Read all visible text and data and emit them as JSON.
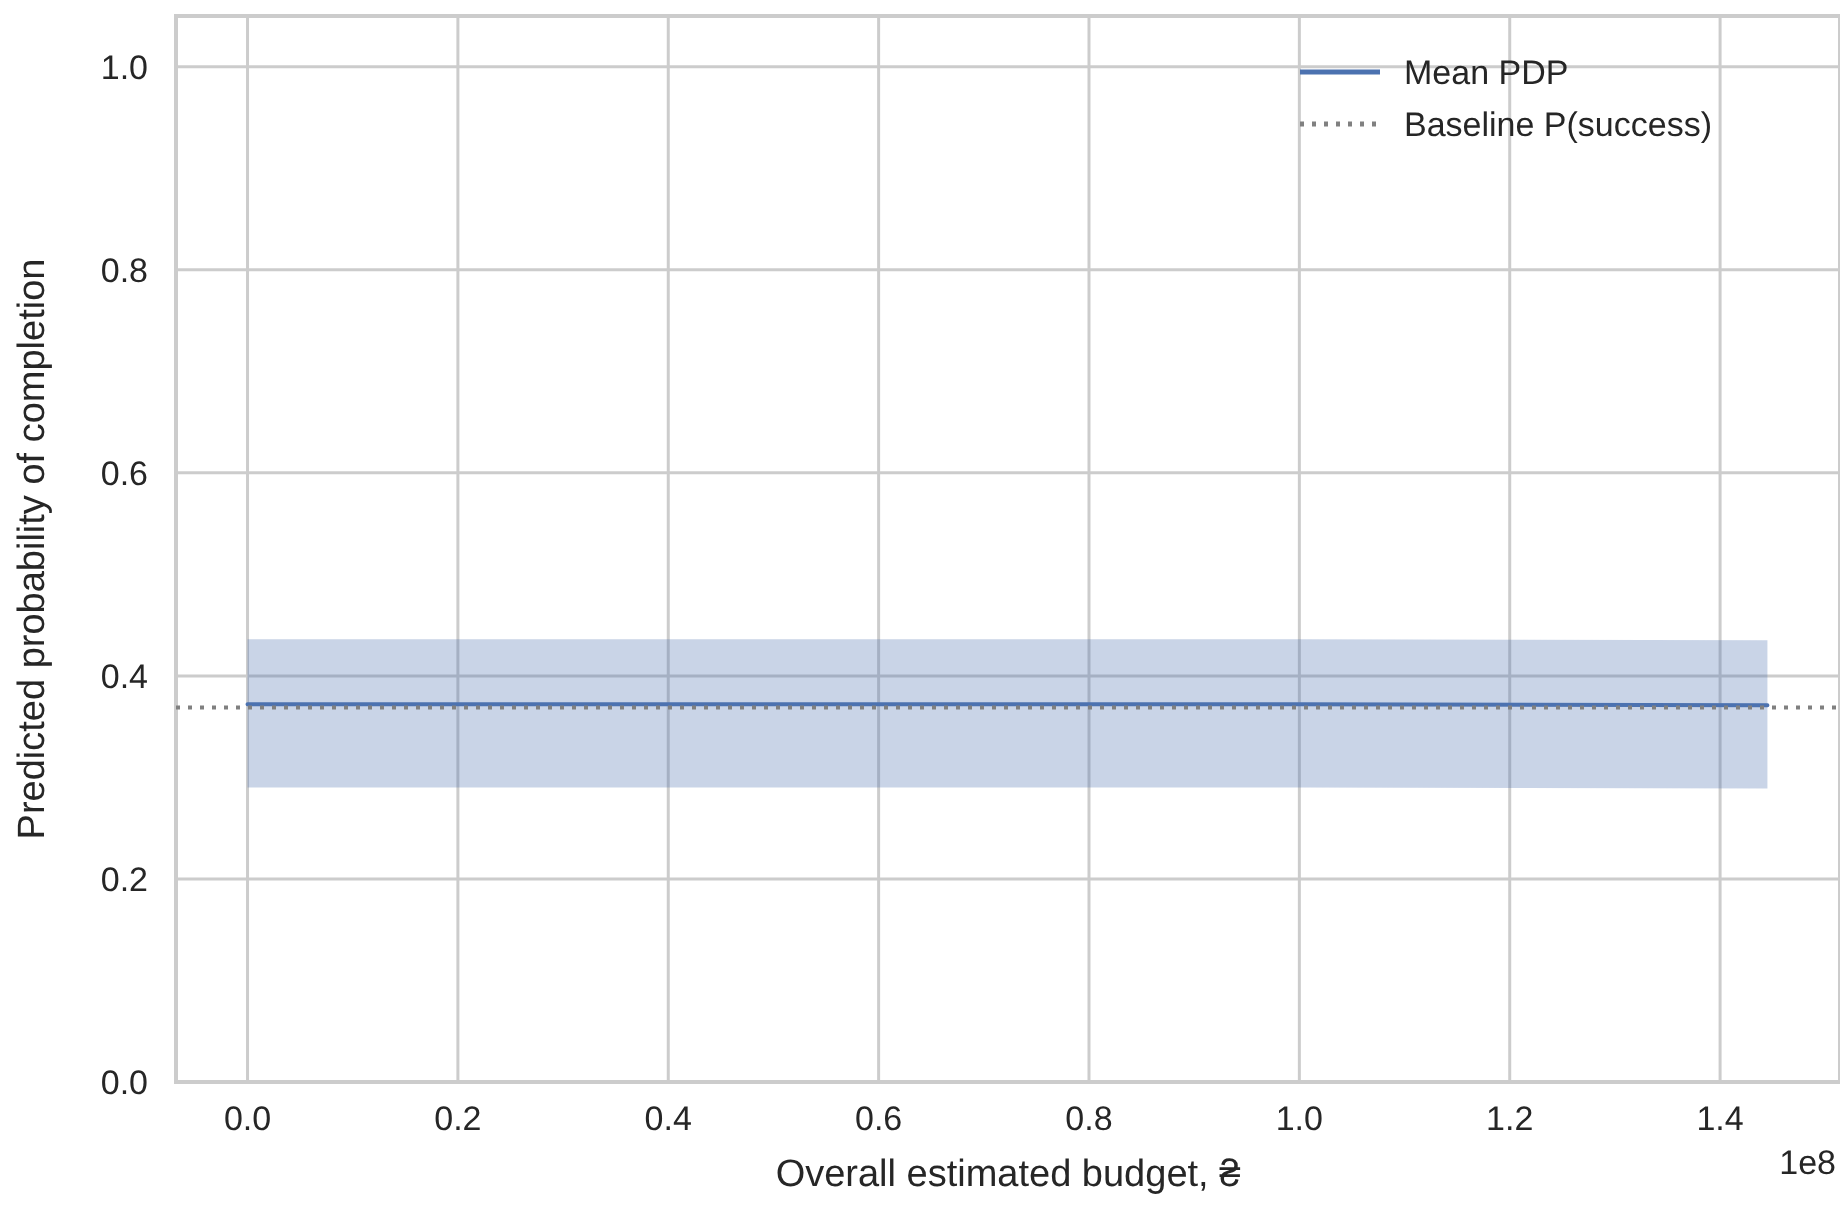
{
  "chart_data": {
    "type": "line",
    "xlabel": "Overall estimated budget, ₴",
    "ylabel": "Predicted probability of completion",
    "xlim": [
      -0.068,
      1.514
    ],
    "xticks": [
      {
        "value": 0,
        "label": "0.0"
      },
      0.2,
      0.4,
      0.6,
      0.8,
      {
        "value": 1,
        "label": "1.0"
      },
      1.2,
      1.4
    ],
    "ylim": [
      0,
      1.05
    ],
    "yticks": [
      {
        "value": 0,
        "label": "0.0"
      },
      0.2,
      0.4,
      0.6,
      0.8,
      {
        "value": 1,
        "label": "1.0"
      }
    ],
    "series": [
      {
        "name": "Mean PDP",
        "color": "#4c72b0",
        "x": [
          0,
          0.5,
          1,
          1.445
        ],
        "values": [
          0.372,
          0.372,
          0.372,
          0.371
        ],
        "lower": [
          0.29,
          0.29,
          0.29,
          0.289
        ],
        "upper": [
          0.436,
          0.436,
          0.436,
          0.435
        ]
      }
    ],
    "ref_lines": [
      {
        "axis": "y",
        "value": 0.369,
        "label": "Baseline P(success)",
        "color": "#808080",
        "line_style": "dotted"
      }
    ],
    "annotations": [
      "1e8"
    ],
    "grid": true,
    "legend": "top right",
    "marker": "none",
    "line_style": "solid"
  }
}
